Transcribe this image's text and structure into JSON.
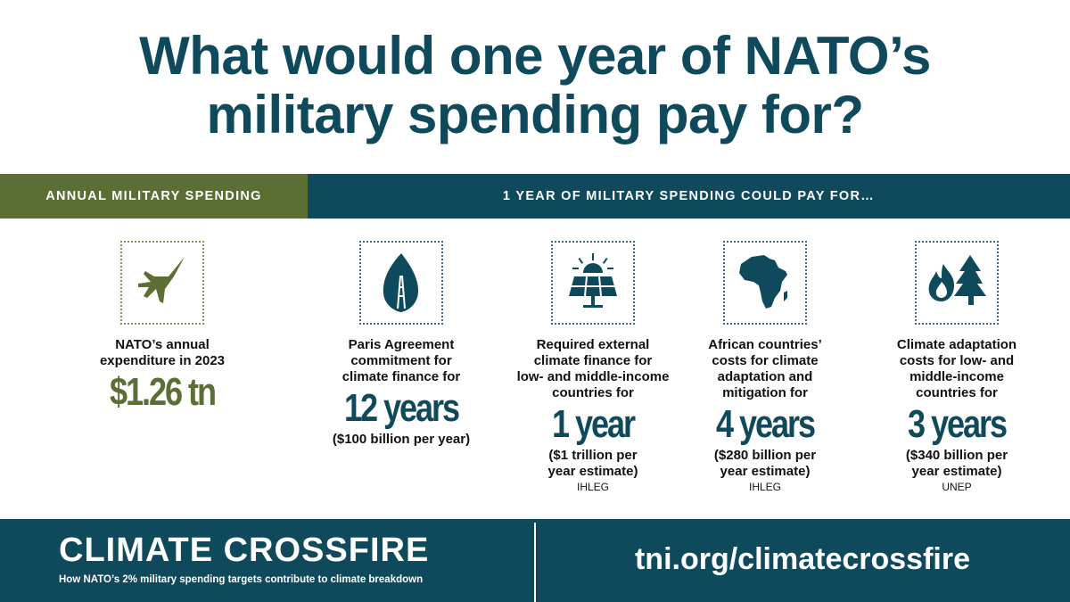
{
  "title": {
    "line1": "What would one year of NATO’s",
    "line2": "military spending pay for?"
  },
  "bands": {
    "left": "ANNUAL MILITARY SPENDING",
    "right": "1 YEAR OF MILITARY SPENDING COULD PAY FOR…"
  },
  "columns": [
    {
      "icon": "fighter-jet-icon",
      "label_lines": [
        "NATO’s annual",
        "expenditure in 2023"
      ],
      "value": "$1.26 tn",
      "sub_lines": [],
      "source": ""
    },
    {
      "icon": "leaf-eiffel-icon",
      "label_lines": [
        "Paris Agreement",
        "commitment for",
        "climate finance for"
      ],
      "value": "12 years",
      "sub_lines": [
        "($100 billion per year)"
      ],
      "source": ""
    },
    {
      "icon": "solar-panel-icon",
      "label_lines": [
        "Required external",
        "climate finance for",
        "low- and middle-income",
        "countries for"
      ],
      "value": "1 year",
      "sub_lines": [
        "($1 trillion per",
        "year estimate)"
      ],
      "source": "IHLEG"
    },
    {
      "icon": "africa-map-icon",
      "label_lines": [
        "African countries’",
        "costs for climate",
        "adaptation and",
        "mitigation for"
      ],
      "value": "4 years",
      "sub_lines": [
        "($280 billion per",
        "year estimate)"
      ],
      "source": "IHLEG"
    },
    {
      "icon": "forest-fire-icon",
      "label_lines": [
        "Climate adaptation",
        "costs for low- and",
        "middle-income",
        "countries for"
      ],
      "value": "3 years",
      "sub_lines": [
        "($340 billion per",
        "year estimate)"
      ],
      "source": "UNEP"
    }
  ],
  "footer": {
    "brand": "CLIMATE CROSSFIRE",
    "tagline": "How NATO’s 2% military spending targets contribute to climate breakdown",
    "url": "tni.org/climatecrossfire"
  },
  "colors": {
    "navy": "#0f4a5c",
    "olive": "#5b6e33"
  }
}
